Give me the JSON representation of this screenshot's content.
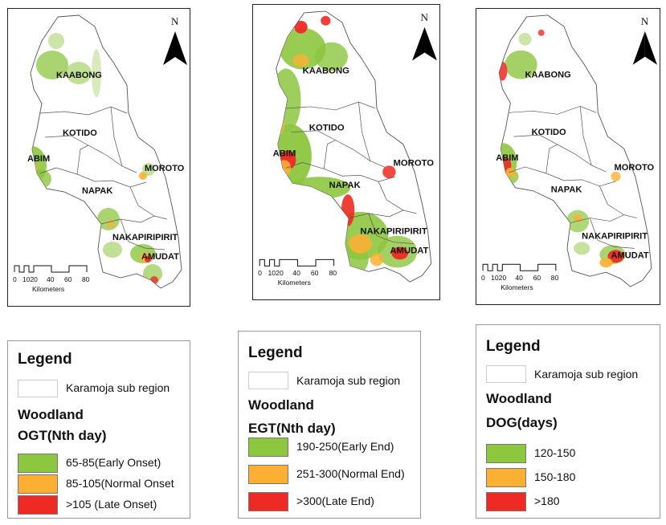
{
  "colors": {
    "early": "#8dc63f",
    "normal": "#fbb034",
    "late": "#ee2a24",
    "boundary": "#555555"
  },
  "maps": [
    {
      "north": "N",
      "districts": [
        "KAABONG",
        "KOTIDO",
        "ABIM",
        "MOROTO",
        "NAPAK",
        "NAKAPIRIPIRIT",
        "AMUDAT"
      ],
      "scale": {
        "ticks": [
          "0",
          "1020",
          "40",
          "60",
          "80"
        ],
        "unit": "Kilometers"
      }
    },
    {
      "north": "N",
      "districts": [
        "KAABONG",
        "KOTIDO",
        "ABIM",
        "MOROTO",
        "NAPAK",
        "NAKAPIRIPIRIT",
        "AMUDAT"
      ],
      "scale": {
        "ticks": [
          "0",
          "1020",
          "40",
          "60",
          "80"
        ],
        "unit": "Kilometers"
      }
    },
    {
      "north": "N",
      "districts": [
        "KAABONG",
        "KOTIDO",
        "ABIM",
        "MOROTO",
        "NAPAK",
        "NAKAPIRIPIRIT",
        "AMUDAT"
      ],
      "scale": {
        "ticks": [
          "0",
          "1020",
          "40",
          "60",
          "80"
        ],
        "unit": "Kilometers"
      }
    }
  ],
  "legends": [
    {
      "title": "Legend",
      "subregion": "Karamoja sub region",
      "landcover": "Woodland",
      "metric": "OGT(Nth day)",
      "classes": [
        "65-85(Early Onset)",
        "85-105(Normal Onset",
        ">105 (Late Onset)"
      ]
    },
    {
      "title": "Legend",
      "subregion": "Karamoja sub region",
      "landcover": "Woodland",
      "metric": "EGT(Nth day)",
      "classes": [
        "190-250(Early End)",
        "251-300(Normal End)",
        ">300(Late End)"
      ]
    },
    {
      "title": "Legend",
      "subregion": "Karamoja sub region",
      "landcover": "Woodland",
      "metric": "DOG(days)",
      "classes": [
        "120-150",
        "150-180",
        ">180"
      ]
    }
  ]
}
